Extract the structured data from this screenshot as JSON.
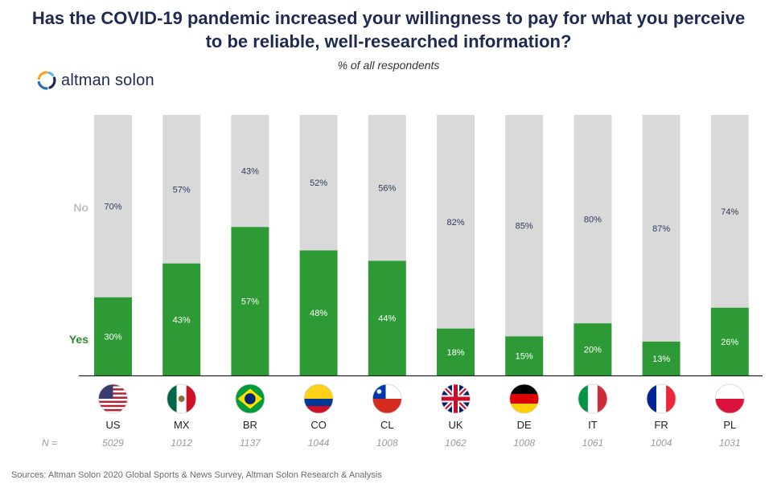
{
  "title_line1": "Has the COVID-19 pandemic increased your willingness to pay for what you perceive",
  "title_line2": "to be reliable, well-researched information?",
  "subtitle": "% of all respondents",
  "logo_text": "altman solon",
  "source": "Sources: Altman Solon 2020 Global Sports & News Survey, Altman Solon Research & Analysis",
  "colors": {
    "title": "#1f2a52",
    "yes": "#2e9a36",
    "no": "#d9d9d9",
    "yes_label": "#2e8b2e",
    "no_label": "#c0c0c0"
  },
  "chart_data": {
    "type": "bar",
    "stacked": true,
    "title": "Has the COVID-19 pandemic increased your willingness to pay for what you perceive to be reliable, well-researched information?",
    "subtitle": "% of all respondents",
    "categories": [
      "US",
      "MX",
      "BR",
      "CO",
      "CL",
      "UK",
      "DE",
      "IT",
      "FR",
      "PL"
    ],
    "flags": [
      "us-flag-icon",
      "mx-flag-icon",
      "br-flag-icon",
      "co-flag-icon",
      "cl-flag-icon",
      "uk-flag-icon",
      "de-flag-icon",
      "it-flag-icon",
      "fr-flag-icon",
      "pl-flag-icon"
    ],
    "series": [
      {
        "name": "Yes",
        "values": [
          30,
          43,
          57,
          48,
          44,
          18,
          15,
          20,
          13,
          26
        ],
        "labels": [
          "30%",
          "43%",
          "57%",
          "48%",
          "44%",
          "18%",
          "15%",
          "20%",
          "13%",
          "26%"
        ]
      },
      {
        "name": "No",
        "values": [
          70,
          57,
          43,
          52,
          56,
          82,
          85,
          80,
          87,
          74
        ],
        "labels": [
          "70%",
          "57%",
          "43%",
          "52%",
          "56%",
          "82%",
          "85%",
          "80%",
          "87%",
          "74%"
        ]
      }
    ],
    "n_label": "N =",
    "n_values": [
      "5029",
      "1012",
      "1137",
      "1044",
      "1008",
      "1062",
      "1008",
      "1061",
      "1004",
      "1031"
    ],
    "ylim": [
      0,
      100
    ],
    "unit": "%"
  }
}
